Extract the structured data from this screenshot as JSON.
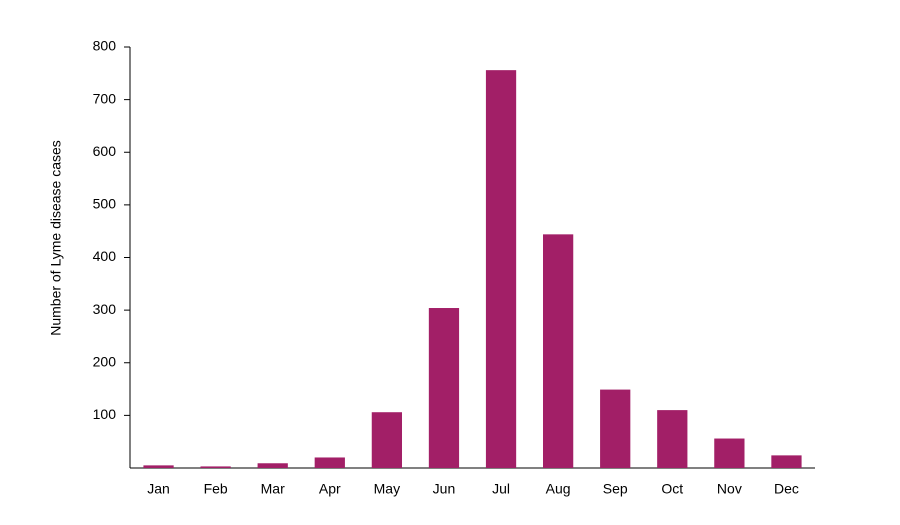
{
  "chart_data": {
    "type": "bar",
    "y_label": "Number of Lyme disease cases",
    "categories": [
      "Jan",
      "Feb",
      "Mar",
      "Apr",
      "May",
      "Jun",
      "Jul",
      "Aug",
      "Sep",
      "Oct",
      "Nov",
      "Dec"
    ],
    "values": [
      5,
      3,
      9,
      20,
      106,
      304,
      756,
      444,
      149,
      110,
      56,
      24
    ],
    "color": "#a21f67",
    "ylim": [
      0,
      800
    ],
    "yticks": [
      100,
      200,
      300,
      400,
      500,
      600,
      700,
      800
    ],
    "grid": false
  }
}
